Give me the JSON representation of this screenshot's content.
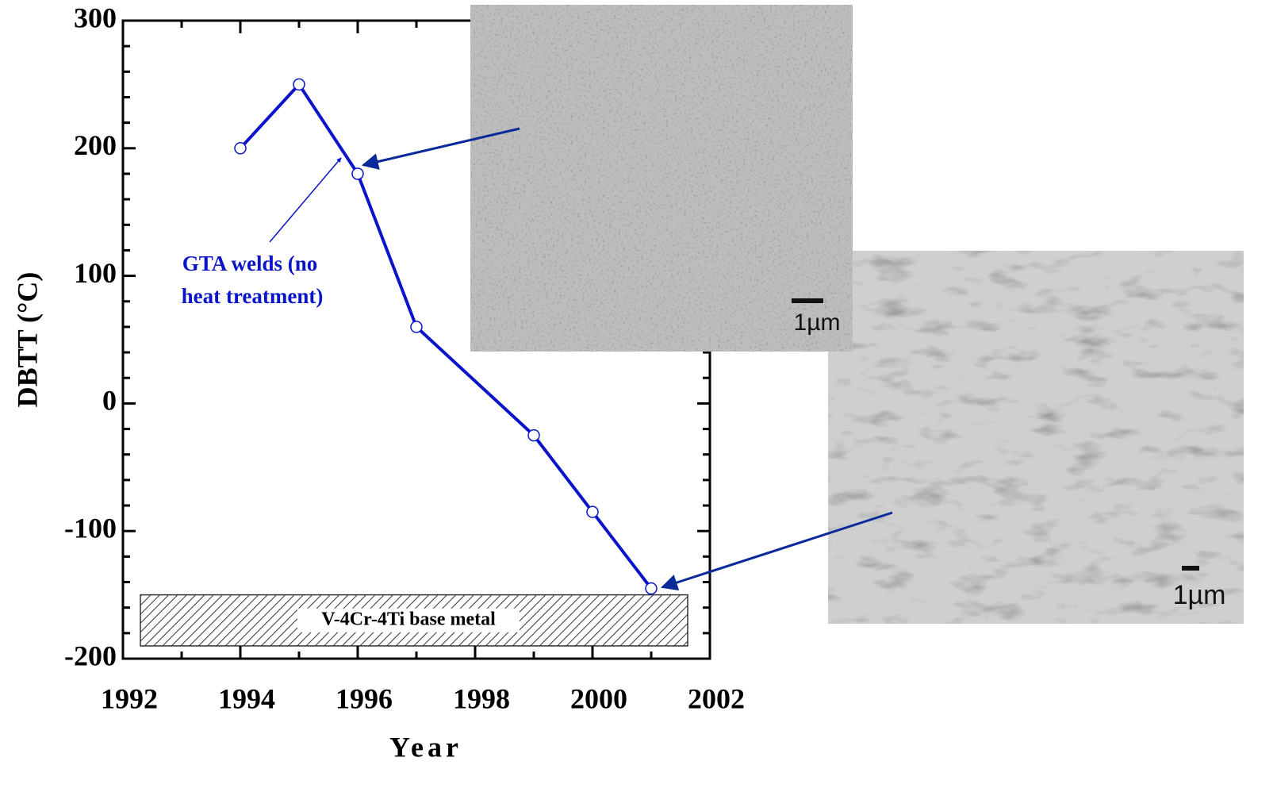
{
  "chart_data": {
    "type": "line",
    "x_label": "Year",
    "y_label": "DBTT  (°C)",
    "x": [
      1994,
      1995,
      1996,
      1997,
      1999,
      2000,
      2001
    ],
    "series": [
      {
        "name": "GTA welds",
        "color": "#0a14c8",
        "values": [
          200,
          250,
          180,
          60,
          -25,
          -85,
          -145
        ]
      }
    ],
    "xlim": [
      1992,
      2002
    ],
    "xticks": [
      1992,
      1994,
      1996,
      1998,
      2000,
      2002
    ],
    "xminorticks": [
      1993,
      1995,
      1997,
      1999,
      2001
    ],
    "ylim": [
      -200,
      300
    ],
    "yticks": [
      -200,
      -100,
      0,
      100,
      200,
      300
    ],
    "yminorticks": [
      -180,
      -160,
      -140,
      -120,
      -80,
      -60,
      -40,
      -20,
      20,
      40,
      60,
      80,
      120,
      140,
      160,
      180,
      220,
      240,
      260,
      280
    ],
    "annotation": [
      "GTA welds (no",
      "heat treatment)"
    ],
    "band": {
      "label": "V-4Cr-4Ti base metal",
      "range": [
        -190,
        -150
      ]
    },
    "micrographs": [
      {
        "scale_label": "1µm"
      },
      {
        "scale_label": "1µm"
      }
    ]
  }
}
